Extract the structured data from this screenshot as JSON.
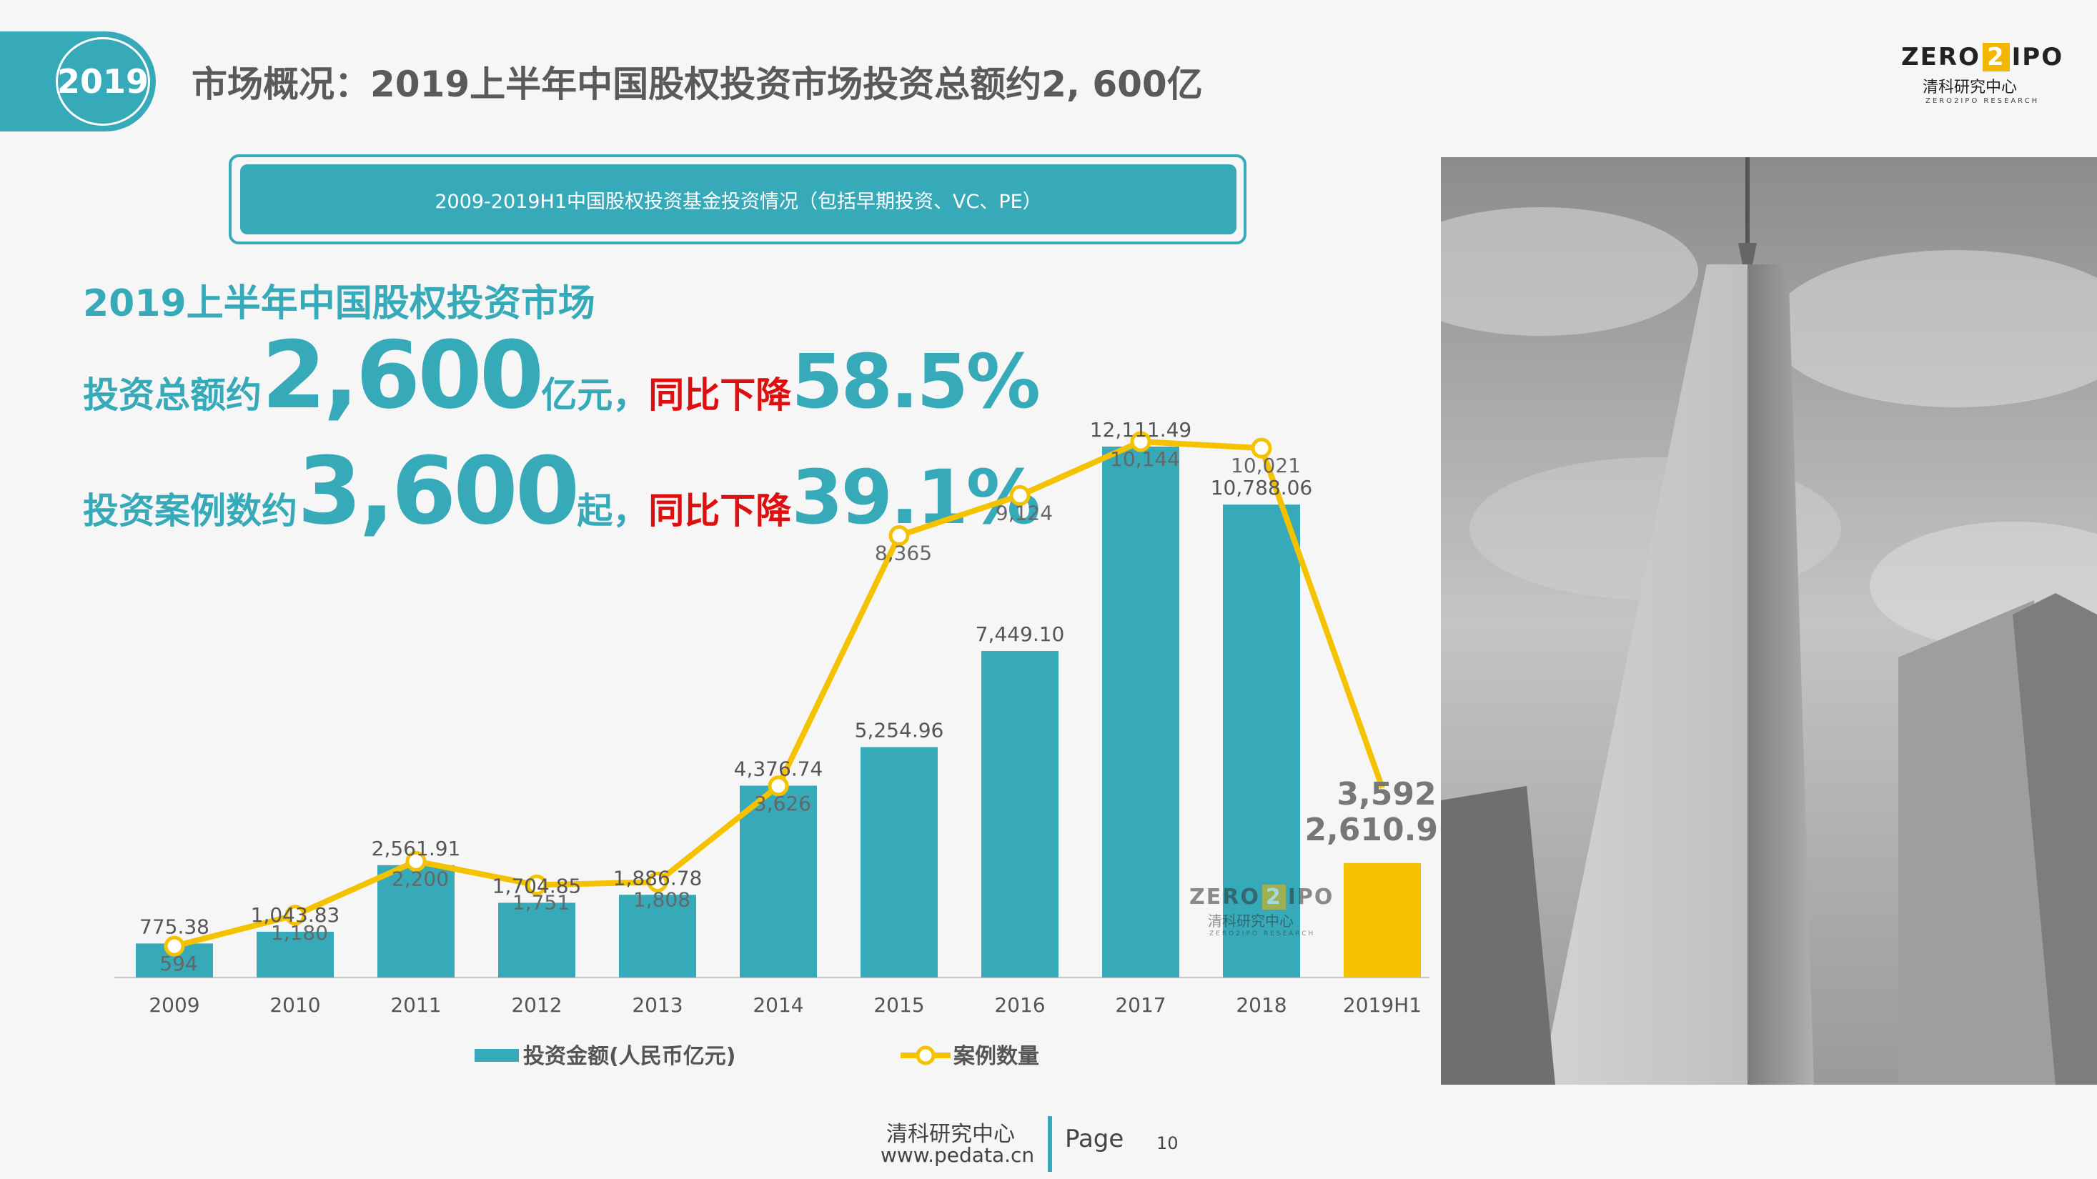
{
  "header": {
    "year_badge": "2019",
    "title": "市场概况：2019上半年中国股权投资市场投资总额约2, 600亿"
  },
  "logo": {
    "main_left": "ZERO",
    "main_mid": "2",
    "main_right": "IPO",
    "sub": "清科研究中心",
    "tiny": "ZERO2IPO RESEARCH"
  },
  "banner": {
    "text": "2009-2019H1中国股权投资基金投资情况（包括早期投资、VC、PE）"
  },
  "highlights": {
    "heading": "2019上半年中国股权投资市场",
    "line1": {
      "prefix": "投资总额约",
      "value": "2,600",
      "unit": "亿元，",
      "change_label": "同比下降",
      "change": "58.5%"
    },
    "line2": {
      "prefix": "投资案例数约",
      "value": "3,600",
      "unit": "起，",
      "change_label": "同比下降",
      "change": "39.1%"
    }
  },
  "colors": {
    "teal": "#37aab9",
    "yellow": "#f5c200",
    "red": "#e00f0f",
    "text_gray": "#5a5a5a"
  },
  "chart_data": {
    "type": "bar",
    "categories": [
      "2009",
      "2010",
      "2011",
      "2012",
      "2013",
      "2014",
      "2015",
      "2016",
      "2017",
      "2018",
      "2019H1"
    ],
    "series": [
      {
        "name": "投资金额(人民币亿元)",
        "type": "bar",
        "values": [
          775.38,
          1043.83,
          2561.91,
          1704.85,
          1886.78,
          4376.74,
          5254.96,
          7449.1,
          12111.49,
          10788.06,
          2610.91
        ],
        "labels": [
          "775.38",
          "1,043.83",
          "2,561.91",
          "1,704.85",
          "1,886.78",
          "4,376.74",
          "5,254.96",
          "7,449.10",
          "12,111.49",
          "10,788.06",
          "2,610.91"
        ],
        "color": "#37aab9",
        "highlight_color": "#f5c200",
        "highlight_index": 10
      },
      {
        "name": "案例数量",
        "type": "line",
        "values": [
          594,
          1180,
          2200,
          1751,
          1808,
          3626,
          8365,
          9124,
          10144,
          10021,
          3592
        ],
        "labels": [
          "594",
          "1,180",
          "2,200",
          "1,751",
          "1,808",
          "3,626",
          "8,365",
          "9,124",
          "10,144",
          "10,021",
          "3,592"
        ],
        "color": "#f5c200"
      }
    ],
    "legend_position": "bottom",
    "grid": false
  },
  "watermark": {
    "main_left": "ZERO",
    "main_mid": "2",
    "main_right": "IPO",
    "sub": "清科研究中心",
    "tiny": "ZERO2IPO RESEARCH"
  },
  "footer": {
    "org": "清科研究中心",
    "url": "www.pedata.cn",
    "page_label": "Page",
    "page_number": "10"
  }
}
